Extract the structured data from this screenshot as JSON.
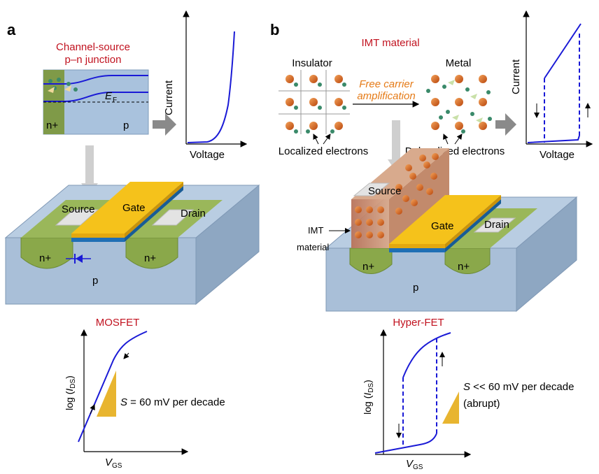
{
  "panels": {
    "a": {
      "letter": "a",
      "junction_title_line1": "Channel-source",
      "junction_title_line2": "p–n junction",
      "band_ef": "E",
      "band_ef_sub": "F",
      "band_n": "n+",
      "band_p": "p",
      "iv_ylabel": "Current",
      "iv_xlabel": "Voltage",
      "device": {
        "source": "Source",
        "gate": "Gate",
        "drain": "Drain",
        "n_left": "n+",
        "n_right": "n+",
        "substrate": "p"
      },
      "transfer_title": "MOSFET",
      "transfer_ylabel_pre": "log (",
      "transfer_ylabel_i": "I",
      "transfer_ylabel_sub": "DS",
      "transfer_ylabel_post": ")",
      "transfer_xlabel": "V",
      "transfer_xlabel_sub": "GS",
      "slope_s": "S",
      "slope_text": " = 60 mV per decade"
    },
    "b": {
      "letter": "b",
      "imt_title": "IMT material",
      "insulator": "Insulator",
      "metal": "Metal",
      "arrow_line1": "Free carrier",
      "arrow_line2": "amplification",
      "localized": "Localized electrons",
      "delocalized": "Delocalized electrons",
      "iv_ylabel": "Current",
      "iv_xlabel": "Voltage",
      "device": {
        "source": "Source",
        "gate": "Gate",
        "drain": "Drain",
        "imt_line1": "IMT",
        "imt_line2": "material",
        "n_left": "n+",
        "n_right": "n+",
        "substrate": "p"
      },
      "transfer_title": "Hyper-FET",
      "transfer_ylabel_pre": "log (",
      "transfer_ylabel_i": "I",
      "transfer_ylabel_sub": "DS",
      "transfer_ylabel_post": ")",
      "transfer_xlabel": "V",
      "transfer_xlabel_sub": "GS",
      "slope_s": "S",
      "slope_text": " << 60 mV per decade",
      "slope_note": "(abrupt)"
    }
  },
  "colors": {
    "title_red": "#c1121f",
    "orange_text": "#e57a16",
    "curve_blue": "#1a1ad6",
    "gate_yellow": "#f5c21b",
    "oxide_blue": "#1f6fb5",
    "n_region_green": "#8aa84a",
    "substrate_blue": "#a9bfd8",
    "electron_orange": "#d4621a",
    "slope_triangle": "#e8b530"
  }
}
